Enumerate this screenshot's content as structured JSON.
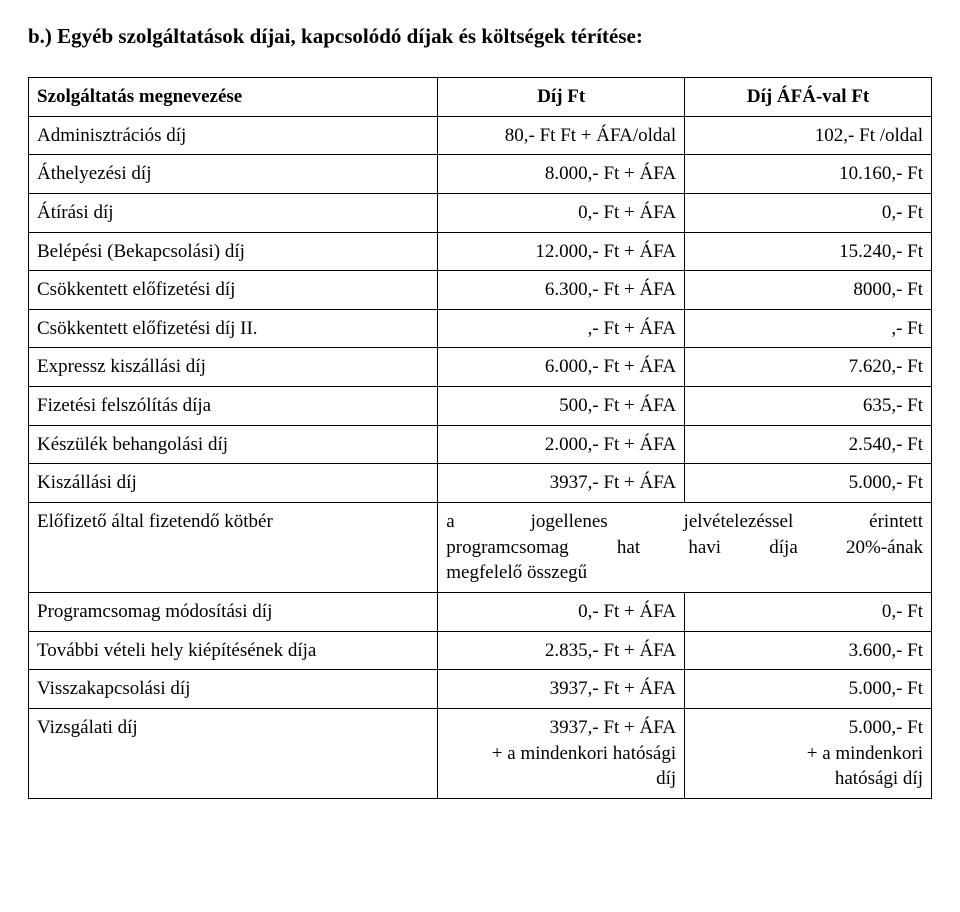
{
  "heading": "b.) Egyéb szolgáltatások díjai, kapcsolódó díjak és költségek térítése:",
  "header": {
    "c1": "Szolgáltatás megnevezése",
    "c2": "Díj Ft",
    "c3": "Díj ÁFÁ-val Ft"
  },
  "rows": [
    {
      "c1": "Adminisztrációs díj",
      "c2": "80,- Ft  Ft + ÁFA/oldal",
      "c3": "102,- Ft /oldal"
    },
    {
      "c1": "Áthelyezési díj",
      "c2": "8.000,- Ft + ÁFA",
      "c3": "10.160,- Ft"
    },
    {
      "c1": "Átírási díj",
      "c2": "0,- Ft + ÁFA",
      "c3": "0,- Ft"
    },
    {
      "c1": "Belépési (Bekapcsolási) díj",
      "c2": "12.000,- Ft + ÁFA",
      "c3": "15.240,- Ft"
    },
    {
      "c1": "Csökkentett előfizetési díj",
      "c2": "6.300,- Ft + ÁFA",
      "c3": "8000,- Ft"
    },
    {
      "c1": "Csökkentett előfizetési díj II.",
      "c2": ",- Ft + ÁFA",
      "c3": ",- Ft"
    },
    {
      "c1": "Expressz kiszállási díj",
      "c2": "6.000,- Ft + ÁFA",
      "c3": "7.620,- Ft"
    },
    {
      "c1": "Fizetési felszólítás díja",
      "c2": "500,- Ft + ÁFA",
      "c3": "635,- Ft"
    },
    {
      "c1": "Készülék behangolási díj",
      "c2": "2.000,- Ft + ÁFA",
      "c3": "2.540,- Ft"
    },
    {
      "c1": "Kiszállási díj",
      "c2": "3937,- Ft + ÁFA",
      "c3": "5.000,- Ft"
    }
  ],
  "mergeRow": {
    "c1": " Előfizető által fizetendő kötbér",
    "line1": "a jogellenes jelvételezéssel érintett",
    "line2": "programcsomag hat havi díja 20%-ának",
    "line3": "megfelelő összegű"
  },
  "rows2": [
    {
      "c1": "Programcsomag módosítási díj",
      "c2": "0,- Ft + ÁFA",
      "c3": "0,- Ft"
    },
    {
      "c1": "További vételi hely kiépítésének díja",
      "c2": "2.835,- Ft + ÁFA",
      "c3": "3.600,- Ft"
    },
    {
      "c1": "Visszakapcsolási díj",
      "c2": "3937,- Ft + ÁFA",
      "c3": "5.000,- Ft"
    }
  ],
  "lastRow": {
    "c1": "Vizsgálati díj",
    "c2a": "3937,- Ft + ÁFA",
    "c2b": "+ a mindenkori hatósági",
    "c2c": "díj",
    "c3a": "5.000,- Ft",
    "c3b": "+ a mindenkori",
    "c3c": "hatósági díj"
  }
}
